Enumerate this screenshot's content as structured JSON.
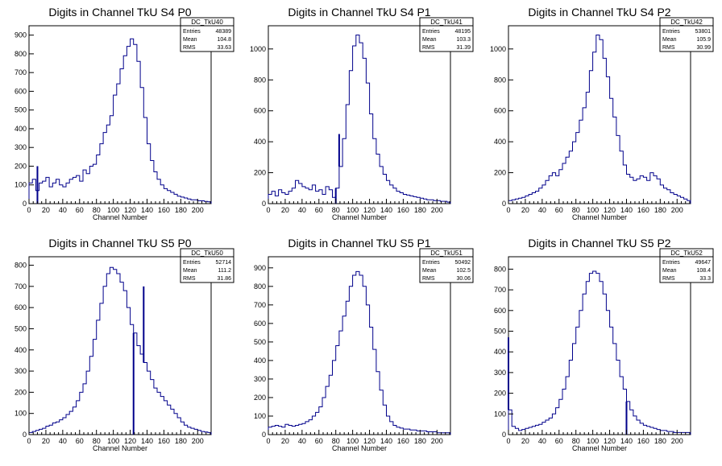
{
  "chart_data": [
    {
      "type": "histogram",
      "title": "Digits in Channel TkU S4 P0",
      "xlabel": "Channel Number",
      "ylabel": "",
      "xlim": [
        0,
        216
      ],
      "ylim": [
        0,
        950
      ],
      "xticks": [
        0,
        20,
        40,
        60,
        80,
        100,
        120,
        140,
        160,
        180,
        200
      ],
      "yticks": [
        0,
        100,
        200,
        300,
        400,
        500,
        600,
        700,
        800,
        900
      ],
      "stats": {
        "name": "DC_TkU40",
        "entries": "48389",
        "mean": "104.8",
        "rms": "33.63"
      },
      "x": [
        0,
        4,
        8,
        12,
        16,
        20,
        24,
        28,
        32,
        36,
        40,
        44,
        48,
        52,
        56,
        60,
        64,
        68,
        72,
        76,
        80,
        84,
        88,
        92,
        96,
        100,
        104,
        108,
        112,
        116,
        120,
        124,
        128,
        132,
        136,
        140,
        144,
        148,
        152,
        156,
        160,
        164,
        168,
        172,
        176,
        180,
        184,
        188,
        192,
        196,
        200,
        204,
        208,
        212
      ],
      "values": [
        110,
        130,
        70,
        110,
        120,
        140,
        90,
        110,
        130,
        100,
        90,
        110,
        130,
        140,
        150,
        120,
        180,
        160,
        200,
        210,
        260,
        320,
        380,
        420,
        470,
        580,
        640,
        720,
        790,
        840,
        880,
        850,
        760,
        620,
        460,
        320,
        230,
        170,
        130,
        100,
        80,
        70,
        60,
        50,
        40,
        35,
        30,
        25,
        20,
        20,
        15,
        15,
        12,
        10
      ],
      "spikes": [
        {
          "x": 10,
          "y": 200
        },
        {
          "x": 94,
          "y": 0
        },
        {
          "x": 130,
          "y": 0
        }
      ]
    },
    {
      "type": "histogram",
      "title": "Digits in Channel TkU S4 P1",
      "xlabel": "Channel Number",
      "ylabel": "",
      "xlim": [
        0,
        216
      ],
      "ylim": [
        0,
        1150
      ],
      "xticks": [
        0,
        20,
        40,
        60,
        80,
        100,
        120,
        140,
        160,
        180,
        200
      ],
      "yticks": [
        0,
        200,
        400,
        600,
        800,
        1000
      ],
      "stats": {
        "name": "DC_TkU41",
        "entries": "48195",
        "mean": "103.3",
        "rms": "31.39"
      },
      "x": [
        0,
        4,
        8,
        12,
        16,
        20,
        24,
        28,
        32,
        36,
        40,
        44,
        48,
        52,
        56,
        60,
        64,
        68,
        72,
        76,
        80,
        84,
        88,
        92,
        96,
        100,
        104,
        108,
        112,
        116,
        120,
        124,
        128,
        132,
        136,
        140,
        144,
        148,
        152,
        156,
        160,
        164,
        168,
        172,
        176,
        180,
        184,
        188,
        192,
        196,
        200,
        204,
        208,
        212
      ],
      "values": [
        60,
        80,
        50,
        90,
        70,
        60,
        80,
        100,
        150,
        130,
        110,
        100,
        90,
        120,
        80,
        90,
        60,
        110,
        90,
        40,
        100,
        240,
        420,
        640,
        860,
        1020,
        1090,
        1040,
        940,
        780,
        580,
        420,
        320,
        240,
        190,
        150,
        120,
        100,
        80,
        70,
        60,
        55,
        50,
        45,
        40,
        35,
        30,
        25,
        25,
        20,
        20,
        15,
        15,
        10
      ],
      "spikes": [
        {
          "x": 80,
          "y": 0
        },
        {
          "x": 84,
          "y": 450
        }
      ]
    },
    {
      "type": "histogram",
      "title": "Digits in Channel TkU S4 P2",
      "xlabel": "Channel Number",
      "ylabel": "",
      "xlim": [
        0,
        216
      ],
      "ylim": [
        0,
        1150
      ],
      "xticks": [
        0,
        20,
        40,
        60,
        80,
        100,
        120,
        140,
        160,
        180,
        200
      ],
      "yticks": [
        0,
        200,
        400,
        600,
        800,
        1000
      ],
      "stats": {
        "name": "DC_TkU42",
        "entries": "53801",
        "mean": "105.9",
        "rms": "30.99"
      },
      "x": [
        0,
        4,
        8,
        12,
        16,
        20,
        24,
        28,
        32,
        36,
        40,
        44,
        48,
        52,
        56,
        60,
        64,
        68,
        72,
        76,
        80,
        84,
        88,
        92,
        96,
        100,
        104,
        108,
        112,
        116,
        120,
        124,
        128,
        132,
        136,
        140,
        144,
        148,
        152,
        156,
        160,
        164,
        168,
        172,
        176,
        180,
        184,
        188,
        192,
        196,
        200,
        204,
        208,
        212
      ],
      "values": [
        20,
        25,
        30,
        35,
        40,
        50,
        60,
        70,
        80,
        100,
        120,
        150,
        180,
        200,
        180,
        220,
        260,
        300,
        340,
        400,
        460,
        540,
        620,
        720,
        860,
        980,
        1090,
        1060,
        940,
        820,
        680,
        560,
        440,
        340,
        250,
        190,
        170,
        150,
        160,
        180,
        170,
        150,
        200,
        180,
        160,
        120,
        100,
        90,
        70,
        60,
        50,
        40,
        30,
        20
      ],
      "spikes": [
        {
          "x": 70,
          "y": 0
        }
      ]
    },
    {
      "type": "histogram",
      "title": "Digits in Channel TkU S5 P0",
      "xlabel": "Channel Number",
      "ylabel": "",
      "xlim": [
        0,
        216
      ],
      "ylim": [
        0,
        840
      ],
      "xticks": [
        0,
        20,
        40,
        60,
        80,
        100,
        120,
        140,
        160,
        180,
        200
      ],
      "yticks": [
        0,
        100,
        200,
        300,
        400,
        500,
        600,
        700,
        800
      ],
      "stats": {
        "name": "DC_TkU50",
        "entries": "52714",
        "mean": "111.2",
        "rms": "31.86"
      },
      "x": [
        0,
        4,
        8,
        12,
        16,
        20,
        24,
        28,
        32,
        36,
        40,
        44,
        48,
        52,
        56,
        60,
        64,
        68,
        72,
        76,
        80,
        84,
        88,
        92,
        96,
        100,
        104,
        108,
        112,
        116,
        120,
        124,
        128,
        132,
        136,
        140,
        144,
        148,
        152,
        156,
        160,
        164,
        168,
        172,
        176,
        180,
        184,
        188,
        192,
        196,
        200,
        204,
        208,
        212
      ],
      "values": [
        10,
        15,
        20,
        25,
        30,
        40,
        45,
        55,
        60,
        70,
        80,
        95,
        110,
        130,
        160,
        200,
        240,
        300,
        370,
        450,
        540,
        620,
        700,
        760,
        790,
        780,
        760,
        720,
        680,
        600,
        520,
        480,
        420,
        380,
        340,
        300,
        260,
        220,
        200,
        180,
        160,
        140,
        120,
        100,
        80,
        60,
        45,
        35,
        30,
        25,
        20,
        15,
        12,
        10
      ],
      "spikes": [
        {
          "x": 124,
          "y": 0
        },
        {
          "x": 136,
          "y": 700
        }
      ]
    },
    {
      "type": "histogram",
      "title": "Digits in Channel TkU S5 P1",
      "xlabel": "Channel Number",
      "ylabel": "",
      "xlim": [
        0,
        216
      ],
      "ylim": [
        0,
        960
      ],
      "xticks": [
        0,
        20,
        40,
        60,
        80,
        100,
        120,
        140,
        160,
        180,
        200
      ],
      "yticks": [
        0,
        100,
        200,
        300,
        400,
        500,
        600,
        700,
        800,
        900
      ],
      "stats": {
        "name": "DC_TkU51",
        "entries": "50492",
        "mean": "102.5",
        "rms": "30.06"
      },
      "x": [
        0,
        4,
        8,
        12,
        16,
        20,
        24,
        28,
        32,
        36,
        40,
        44,
        48,
        52,
        56,
        60,
        64,
        68,
        72,
        76,
        80,
        84,
        88,
        92,
        96,
        100,
        104,
        108,
        112,
        116,
        120,
        124,
        128,
        132,
        136,
        140,
        144,
        148,
        152,
        156,
        160,
        164,
        168,
        172,
        176,
        180,
        184,
        188,
        192,
        196,
        200,
        204,
        208,
        212
      ],
      "values": [
        40,
        45,
        50,
        45,
        40,
        55,
        50,
        45,
        50,
        55,
        60,
        70,
        80,
        100,
        120,
        150,
        200,
        260,
        320,
        400,
        480,
        560,
        640,
        720,
        800,
        860,
        880,
        860,
        800,
        700,
        580,
        460,
        340,
        240,
        160,
        100,
        70,
        50,
        40,
        35,
        30,
        30,
        25,
        25,
        20,
        20,
        20,
        15,
        15,
        15,
        10,
        10,
        10,
        10
      ],
      "spikes": []
    },
    {
      "type": "histogram",
      "title": "Digits in Channel TkU S5 P2",
      "xlabel": "Channel Number",
      "ylabel": "",
      "xlim": [
        0,
        216
      ],
      "ylim": [
        0,
        860
      ],
      "xticks": [
        0,
        20,
        40,
        60,
        80,
        100,
        120,
        140,
        160,
        180,
        200
      ],
      "yticks": [
        0,
        100,
        200,
        300,
        400,
        500,
        600,
        700,
        800
      ],
      "stats": {
        "name": "DC_TkU52",
        "entries": "49647",
        "mean": "108.4",
        "rms": "33.3"
      },
      "x": [
        0,
        4,
        8,
        12,
        16,
        20,
        24,
        28,
        32,
        36,
        40,
        44,
        48,
        52,
        56,
        60,
        64,
        68,
        72,
        76,
        80,
        84,
        88,
        92,
        96,
        100,
        104,
        108,
        112,
        116,
        120,
        124,
        128,
        132,
        136,
        140,
        144,
        148,
        152,
        156,
        160,
        164,
        168,
        172,
        176,
        180,
        184,
        188,
        192,
        196,
        200,
        204,
        208,
        212
      ],
      "values": [
        120,
        40,
        30,
        20,
        25,
        30,
        35,
        40,
        45,
        50,
        60,
        70,
        80,
        100,
        130,
        170,
        220,
        280,
        360,
        440,
        520,
        600,
        680,
        740,
        780,
        790,
        780,
        740,
        680,
        600,
        520,
        440,
        360,
        280,
        220,
        160,
        120,
        90,
        70,
        55,
        45,
        40,
        35,
        30,
        25,
        20,
        20,
        15,
        15,
        10,
        10,
        10,
        10,
        10
      ],
      "spikes": [
        {
          "x": 0,
          "y": 470
        },
        {
          "x": 140,
          "y": 0
        }
      ]
    }
  ]
}
